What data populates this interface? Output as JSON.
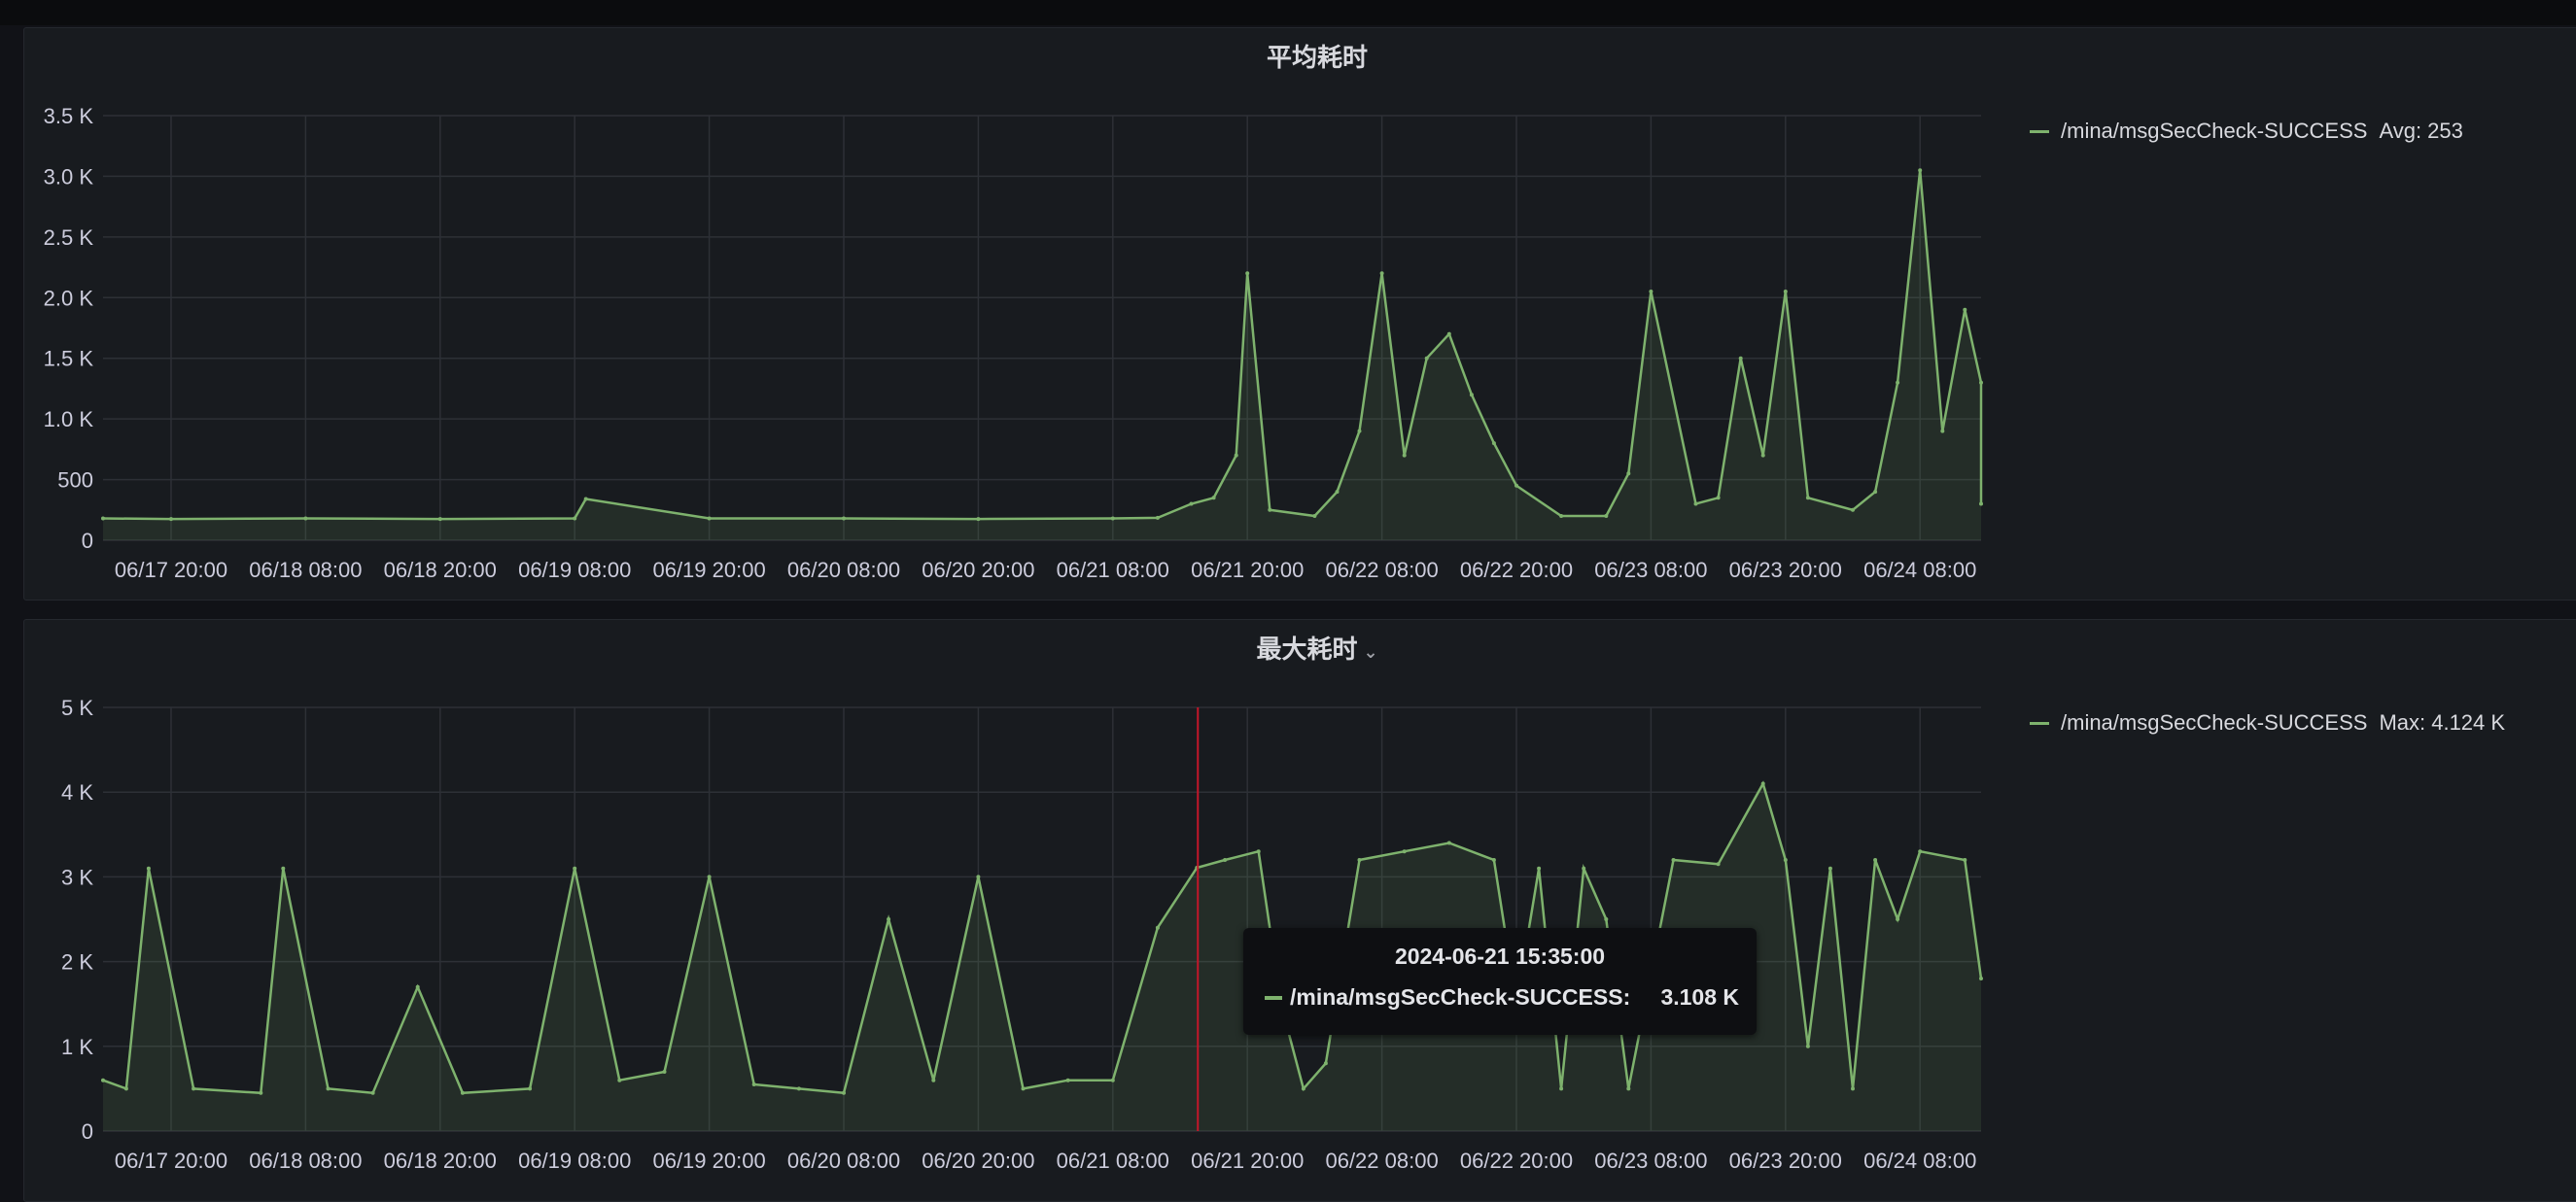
{
  "colors": {
    "series": "#7eb26d",
    "grid": "#2d3036",
    "hover_line": "#c4162a",
    "text": "#ccccdc"
  },
  "panels": [
    {
      "title": "平均耗时",
      "legend": {
        "name": "/mina/msgSecCheck-SUCCESS",
        "stat": "Avg: 253"
      }
    },
    {
      "title": "最大耗时",
      "menu_icon": "chevron-down-icon",
      "legend": {
        "name": "/mina/msgSecCheck-SUCCESS",
        "stat": "Max: 4.124 K"
      }
    }
  ],
  "tooltip": {
    "time": "2024-06-21 15:35:00",
    "series": "/mina/msgSecCheck-SUCCESS:",
    "value": "3.108 K"
  },
  "chart_data": [
    {
      "type": "area",
      "y_ticks": [
        "3.5 K",
        "3.0 K",
        "2.5 K",
        "2.0 K",
        "1.5 K",
        "1.0 K",
        "500",
        "0"
      ],
      "ylim": [
        0,
        3500
      ],
      "x_ticks": [
        "06/17 20:00",
        "06/18 08:00",
        "06/18 20:00",
        "06/19 08:00",
        "06/19 20:00",
        "06/20 08:00",
        "06/20 20:00",
        "06/21 08:00",
        "06/21 20:00",
        "06/22 08:00",
        "06/22 20:00",
        "06/23 08:00",
        "06/23 20:00",
        "06/24 08:00"
      ],
      "series": [
        {
          "name": "/mina/msgSecCheck-SUCCESS",
          "x": [
            "06/17 12:00",
            "06/17 20:00",
            "06/18 08:00",
            "06/18 20:00",
            "06/19 08:00",
            "06/19 09:00",
            "06/19 20:00",
            "06/20 08:00",
            "06/20 20:00",
            "06/21 08:00",
            "06/21 12:00",
            "06/21 15:00",
            "06/21 17:00",
            "06/21 19:00",
            "06/21 20:00",
            "06/21 22:00",
            "06/22 02:00",
            "06/22 04:00",
            "06/22 06:00",
            "06/22 08:00",
            "06/22 10:00",
            "06/22 12:00",
            "06/22 14:00",
            "06/22 16:00",
            "06/22 18:00",
            "06/22 20:00",
            "06/23 00:00",
            "06/23 04:00",
            "06/23 06:00",
            "06/23 08:00",
            "06/23 12:00",
            "06/23 14:00",
            "06/23 16:00",
            "06/23 18:00",
            "06/23 20:00",
            "06/23 22:00",
            "06/24 02:00",
            "06/24 04:00",
            "06/24 06:00",
            "06/24 08:00",
            "06/24 10:00",
            "06/24 12:00",
            "06/24 14:00",
            "06/24 16:00"
          ],
          "values": [
            180,
            175,
            180,
            175,
            180,
            340,
            180,
            180,
            175,
            180,
            185,
            300,
            350,
            700,
            2200,
            250,
            200,
            400,
            900,
            2200,
            700,
            1500,
            1700,
            1200,
            800,
            450,
            200,
            200,
            550,
            2050,
            300,
            350,
            1500,
            700,
            2050,
            350,
            250,
            400,
            1300,
            3050,
            900,
            1900,
            1300,
            300
          ]
        }
      ]
    },
    {
      "type": "area",
      "y_ticks": [
        "5 K",
        "4 K",
        "3 K",
        "2 K",
        "1 K",
        "0"
      ],
      "ylim": [
        0,
        5000
      ],
      "x_ticks": [
        "06/17 20:00",
        "06/18 08:00",
        "06/18 20:00",
        "06/19 08:00",
        "06/19 20:00",
        "06/20 08:00",
        "06/20 20:00",
        "06/21 08:00",
        "06/21 20:00",
        "06/22 08:00",
        "06/22 20:00",
        "06/23 08:00",
        "06/23 20:00",
        "06/24 08:00"
      ],
      "series": [
        {
          "name": "/mina/msgSecCheck-SUCCESS",
          "x": [
            "06/17 12:00",
            "06/17 16:00",
            "06/17 18:00",
            "06/17 22:00",
            "06/18 04:00",
            "06/18 06:00",
            "06/18 10:00",
            "06/18 14:00",
            "06/18 18:00",
            "06/18 22:00",
            "06/19 04:00",
            "06/19 08:00",
            "06/19 12:00",
            "06/19 16:00",
            "06/19 20:00",
            "06/20 00:00",
            "06/20 04:00",
            "06/20 08:00",
            "06/20 12:00",
            "06/20 16:00",
            "06/20 20:00",
            "06/21 00:00",
            "06/21 04:00",
            "06/21 08:00",
            "06/21 12:00",
            "06/21 15:30",
            "06/21 18:00",
            "06/21 21:00",
            "06/21 23:00",
            "06/22 01:00",
            "06/22 03:00",
            "06/22 06:00",
            "06/22 10:00",
            "06/22 14:00",
            "06/22 18:00",
            "06/22 20:00",
            "06/22 22:00",
            "06/23 00:00",
            "06/23 02:00",
            "06/23 04:00",
            "06/23 06:00",
            "06/23 10:00",
            "06/23 14:00",
            "06/23 18:00",
            "06/23 20:00",
            "06/23 22:00",
            "06/24 00:00",
            "06/24 02:00",
            "06/24 04:00",
            "06/24 06:00",
            "06/24 08:00",
            "06/24 12:00",
            "06/24 16:00"
          ],
          "values": [
            600,
            500,
            3100,
            500,
            450,
            3100,
            500,
            450,
            1700,
            450,
            500,
            3100,
            600,
            700,
            3000,
            550,
            500,
            450,
            2500,
            600,
            3000,
            500,
            600,
            600,
            2400,
            3108,
            3200,
            3300,
            1500,
            500,
            800,
            3200,
            3300,
            3400,
            3200,
            1500,
            3100,
            500,
            3100,
            2500,
            500,
            3200,
            3150,
            4100,
            3200,
            1000,
            3100,
            500,
            3200,
            2500,
            3300,
            3200,
            1800
          ]
        }
      ]
    }
  ]
}
